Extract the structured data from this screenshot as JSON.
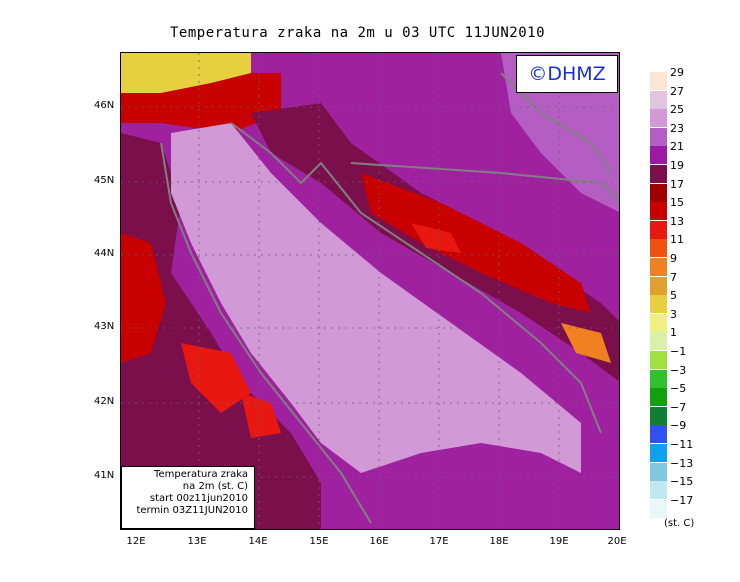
{
  "title": "Temperatura zraka na 2m u 03 UTC 11JUN2010",
  "logo_text": "©DHMZ",
  "info_box": {
    "line1": "Temperatura zraka",
    "line2": "na 2m (st. C)",
    "line3": "start 00z11jun2010",
    "line4": "termin 03Z11JUN2010"
  },
  "lat_labels": [
    "46N",
    "45N",
    "44N",
    "43N",
    "42N",
    "41N"
  ],
  "lon_labels": [
    "12E",
    "13E",
    "14E",
    "15E",
    "16E",
    "17E",
    "18E",
    "19E",
    "20E"
  ],
  "legend": {
    "unit": "(st. C)",
    "labels": [
      "29",
      "27",
      "25",
      "23",
      "21",
      "19",
      "17",
      "15",
      "13",
      "11",
      "9",
      "7",
      "5",
      "3",
      "1",
      "−1",
      "−3",
      "−5",
      "−7",
      "−9",
      "−11",
      "−13",
      "−15",
      "−17"
    ],
    "colors": [
      "#fbe6d6",
      "#e0c4e0",
      "#d19ad6",
      "#b45ec4",
      "#9a1aa4",
      "#7a0f4c",
      "#a00000",
      "#c80000",
      "#e81810",
      "#f05010",
      "#f08020",
      "#e0a030",
      "#e6d040",
      "#f0f080",
      "#d8f0a8",
      "#a0e040",
      "#30c030",
      "#10a010",
      "#108030",
      "#3050f0",
      "#10a0f0",
      "#80c8e0",
      "#c0e8f0",
      "#e8f8f8"
    ]
  }
}
